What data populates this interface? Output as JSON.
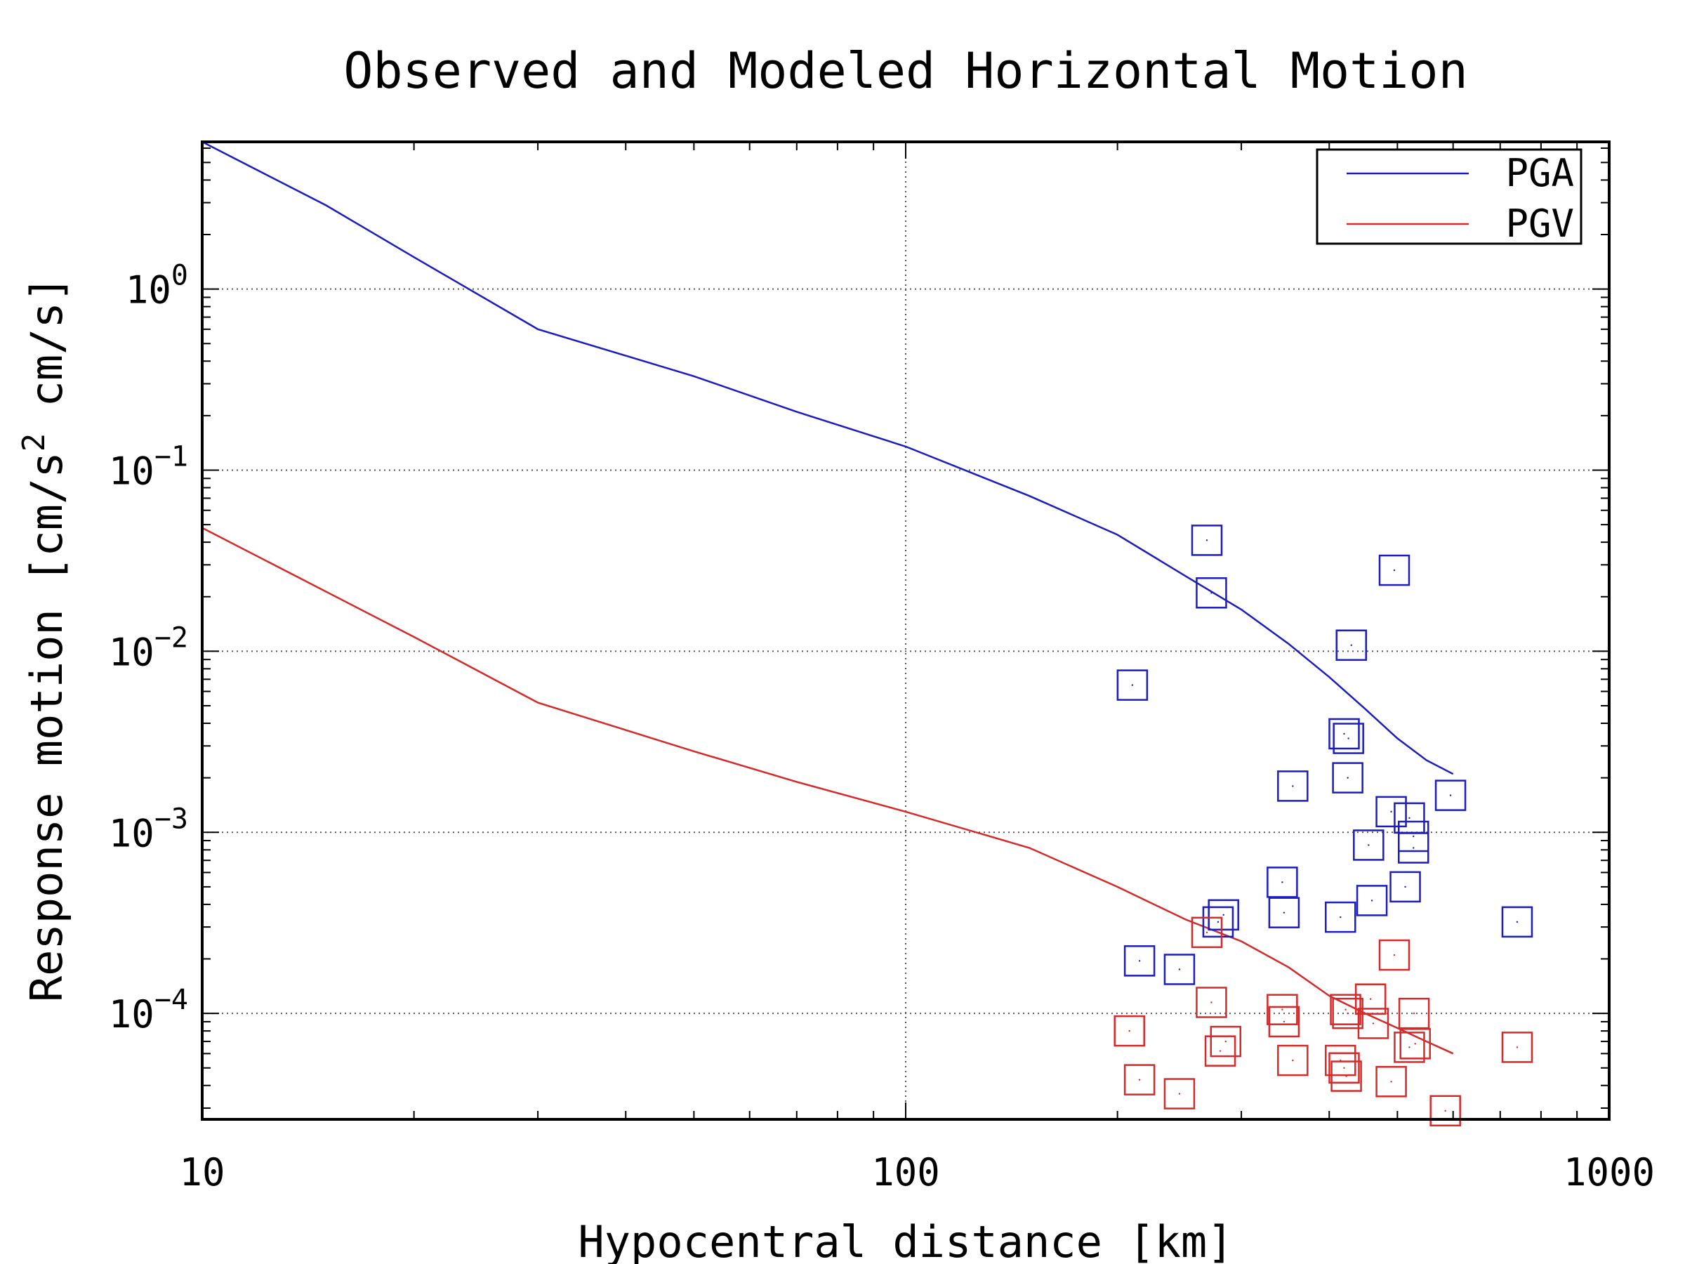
{
  "chart_data": {
    "type": "scatter",
    "title": "Observed and Modeled Horizontal Motion",
    "xlabel": "Hypocentral distance [km]",
    "ylabel": {
      "prefix": "Response motion  [cm/s",
      "superscript": "2",
      "suffix": "  cm/s]"
    },
    "x_scale": "log",
    "y_scale": "log",
    "xlim": [
      10,
      1000
    ],
    "ylim": [
      2.6e-05,
      6.5
    ],
    "grid": true,
    "legend_position": "top-right",
    "x_ticks": [
      {
        "value": 10,
        "label": "10"
      },
      {
        "value": 100,
        "label": "100"
      },
      {
        "value": 1000,
        "label": "1000"
      }
    ],
    "y_ticks": [
      {
        "value": 1,
        "base": "10",
        "exp": "0"
      },
      {
        "value": 0.1,
        "base": "10",
        "exp": "−1"
      },
      {
        "value": 0.01,
        "base": "10",
        "exp": "−2"
      },
      {
        "value": 0.001,
        "base": "10",
        "exp": "−3"
      },
      {
        "value": 0.0001,
        "base": "10",
        "exp": "−4"
      }
    ],
    "series": [
      {
        "name": "PGA",
        "color": "#1c1cbf",
        "line": {
          "x": [
            10,
            15,
            20,
            30,
            50,
            70,
            100,
            150,
            200,
            250,
            300,
            350,
            400,
            450,
            500,
            550,
            600
          ],
          "y": [
            6.5,
            2.9,
            1.5,
            0.6,
            0.33,
            0.21,
            0.135,
            0.072,
            0.044,
            0.026,
            0.017,
            0.011,
            0.0072,
            0.0048,
            0.0033,
            0.0025,
            0.0021
          ]
        },
        "points": {
          "x": [
            268,
            272,
            210,
            430,
            495,
            420,
            426,
            425,
            355,
            520,
            595,
            490,
            455,
            527,
            527,
            343,
            415,
            460,
            513,
            283,
            278,
            345,
            740,
            215,
            245
          ],
          "y": [
            0.041,
            0.021,
            0.0065,
            0.0108,
            0.028,
            0.0035,
            0.0033,
            0.002,
            0.0018,
            0.0012,
            0.0016,
            0.0013,
            0.00085,
            0.00082,
            0.00095,
            0.00053,
            0.00034,
            0.00042,
            0.0005,
            0.00035,
            0.00032,
            0.00036,
            0.00032,
            0.000195,
            0.000175
          ]
        }
      },
      {
        "name": "PGV",
        "color": "#d42a2a",
        "line": {
          "x": [
            10,
            20,
            30,
            50,
            70,
            100,
            150,
            200,
            250,
            300,
            350,
            400,
            450,
            500,
            550,
            600
          ],
          "y": [
            0.048,
            0.012,
            0.0052,
            0.0028,
            0.0019,
            0.0013,
            0.00082,
            0.0005,
            0.00033,
            0.00025,
            0.00018,
            0.000125,
            0.0001,
            8.3e-05,
            7e-05,
            6e-05
          ]
        },
        "points": {
          "x": [
            268,
            272,
            343,
            345,
            425,
            422,
            458,
            462,
            495,
            528,
            520,
            530,
            740,
            208,
            215,
            245,
            280,
            285,
            355,
            415,
            420,
            423,
            490,
            585
          ],
          "y": [
            0.00028,
            0.000115,
            0.000105,
            9e-05,
            0.0001,
            0.000105,
            0.00012,
            8.8e-05,
            0.00021,
            0.0001,
            6.5e-05,
            6.8e-05,
            6.5e-05,
            8e-05,
            4.3e-05,
            3.6e-05,
            6.2e-05,
            7e-05,
            5.5e-05,
            5.5e-05,
            5e-05,
            4.5e-05,
            4.2e-05,
            2.9e-05
          ]
        }
      }
    ]
  }
}
